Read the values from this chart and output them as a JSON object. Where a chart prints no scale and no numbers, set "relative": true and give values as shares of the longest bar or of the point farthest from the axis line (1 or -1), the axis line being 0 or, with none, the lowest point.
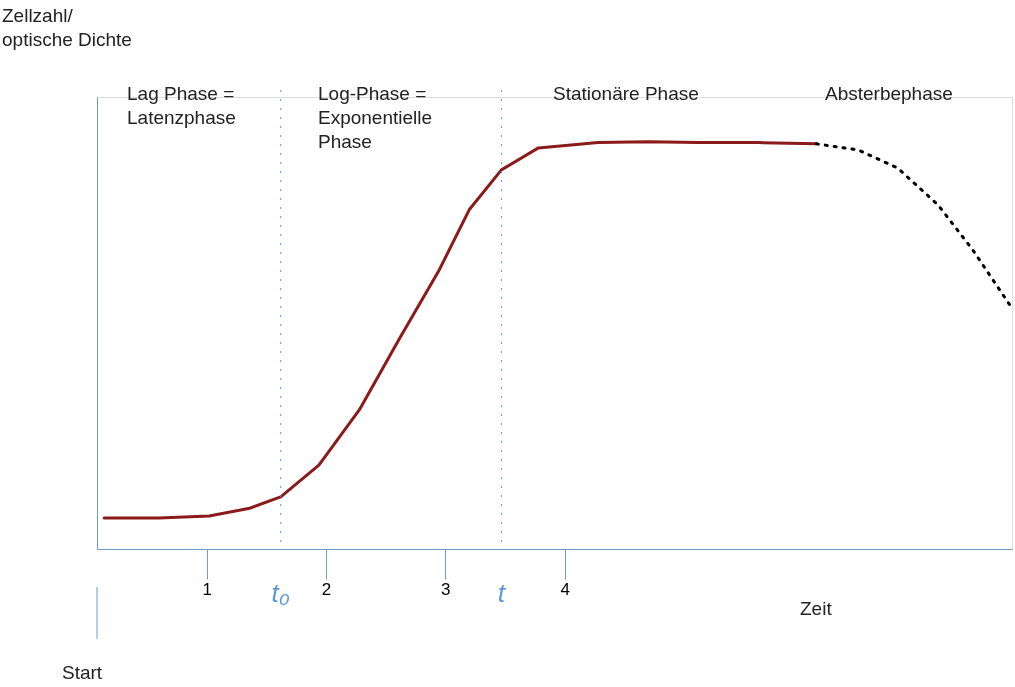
{
  "chart_data": {
    "type": "line",
    "relative": true,
    "xlabel": "Zeit",
    "xlim": [
      0.08,
      7.75
    ],
    "xticks": [
      1,
      2,
      3,
      4
    ],
    "grid": false,
    "marker": "none",
    "series": [
      {
        "color": "#8b1a1a",
        "line_style": "solid",
        "x": [
          0.14,
          0.6,
          1.02,
          1.36,
          1.62,
          1.94,
          2.28,
          2.61,
          2.95,
          3.2,
          3.47,
          3.78,
          4.28,
          4.7,
          5.12,
          5.62,
          6.11
        ],
        "values": [
          0.076,
          0.076,
          0.081,
          0.1,
          0.128,
          0.206,
          0.342,
          0.514,
          0.686,
          0.833,
          0.931,
          0.985,
          0.998,
          1.0,
          0.998,
          0.998,
          0.995
        ]
      },
      {
        "color": "#000000",
        "line_style": "dotted",
        "x": [
          6.11,
          6.46,
          6.79,
          7.13,
          7.42,
          7.73
        ],
        "values": [
          0.995,
          0.98,
          0.936,
          0.845,
          0.735,
          0.6
        ]
      }
    ],
    "ref_lines": [
      {
        "axis": "x",
        "value": 1.62,
        "label": "t₀",
        "color": "#5b9bd5",
        "line_style": "dotted"
      },
      {
        "axis": "x",
        "value": 3.47,
        "label": "t",
        "color": "#5b9bd5",
        "line_style": "dotted"
      }
    ],
    "annotations": [
      "Lag Phase =\nLatenzphase",
      "Log-Phase =\nExponentielle\nPhase",
      "Stationäre Phase",
      "Absterbephase",
      "Start",
      "Zellzahl/\noptische Dichte"
    ]
  }
}
